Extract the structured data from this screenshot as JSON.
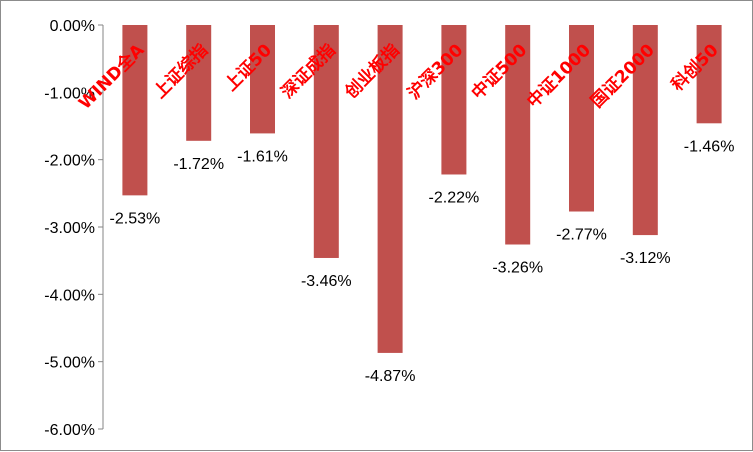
{
  "colors": {
    "bar": "#c0504d",
    "category_label": "#ff0000",
    "axis": "#868686"
  },
  "chart_data": {
    "type": "bar",
    "title": "",
    "xlabel": "",
    "ylabel": "",
    "categories": [
      "WIND全A",
      "上证综指",
      "上证50",
      "深证成指",
      "创业板指",
      "沪深300",
      "中证500",
      "中证1000",
      "国证2000",
      "科创50"
    ],
    "values": [
      -2.53,
      -1.72,
      -1.61,
      -3.46,
      -4.87,
      -2.22,
      -3.26,
      -2.77,
      -3.12,
      -1.46
    ],
    "value_labels": [
      "-2.53%",
      "-1.72%",
      "-1.61%",
      "-3.46%",
      "-4.87%",
      "-2.22%",
      "-3.26%",
      "-2.77%",
      "-3.12%",
      "-1.46%"
    ],
    "ylim": [
      -6,
      0
    ],
    "y_ticks": [
      0,
      -1,
      -2,
      -3,
      -4,
      -5,
      -6
    ],
    "y_tick_labels": [
      "0.00%",
      "-1.00%",
      "-2.00%",
      "-3.00%",
      "-4.00%",
      "-5.00%",
      "-6.00%"
    ],
    "grid": false,
    "legend": "none",
    "category_label_position": "inside-top-rotated"
  }
}
